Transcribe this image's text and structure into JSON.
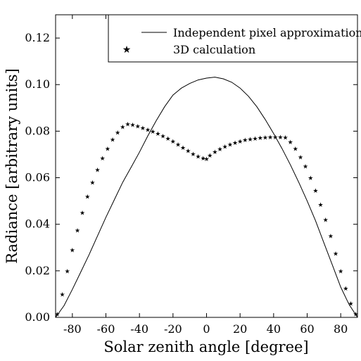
{
  "chart_data": {
    "type": "line",
    "title": "",
    "xlabel": "Solar zenith angle [degree]",
    "ylabel": "Radiance [arbitrary units]",
    "xlim": [
      -90,
      90
    ],
    "ylim": [
      0,
      0.13
    ],
    "grid": false,
    "legend_position": "top-right",
    "x_ticks": [
      {
        "value": -80,
        "label": "-80"
      },
      {
        "value": -60,
        "label": "-60"
      },
      {
        "value": -40,
        "label": "-40"
      },
      {
        "value": -20,
        "label": "-20"
      },
      {
        "value": 0,
        "label": "0"
      },
      {
        "value": 20,
        "label": "20"
      },
      {
        "value": 40,
        "label": "40"
      },
      {
        "value": 60,
        "label": "60"
      },
      {
        "value": 80,
        "label": "80"
      }
    ],
    "y_ticks": [
      {
        "value": 0.0,
        "label": "0.00"
      },
      {
        "value": 0.02,
        "label": "0.02"
      },
      {
        "value": 0.04,
        "label": "0.04"
      },
      {
        "value": 0.06,
        "label": "0.06"
      },
      {
        "value": 0.08,
        "label": "0.08"
      },
      {
        "value": 0.1,
        "label": "0.10"
      },
      {
        "value": 0.12,
        "label": "0.12"
      }
    ],
    "series": [
      {
        "name": "Independent pixel approximation",
        "style": "line",
        "color": "#000000",
        "points": [
          [
            -90,
            0.0
          ],
          [
            -85,
            0.005
          ],
          [
            -80,
            0.012
          ],
          [
            -75,
            0.0195
          ],
          [
            -70,
            0.027
          ],
          [
            -65,
            0.035
          ],
          [
            -60,
            0.043
          ],
          [
            -55,
            0.0505
          ],
          [
            -50,
            0.058
          ],
          [
            -45,
            0.0645
          ],
          [
            -40,
            0.071
          ],
          [
            -35,
            0.078
          ],
          [
            -30,
            0.0845
          ],
          [
            -25,
            0.0905
          ],
          [
            -20,
            0.0955
          ],
          [
            -15,
            0.0985
          ],
          [
            -10,
            0.1005
          ],
          [
            -5,
            0.102
          ],
          [
            0,
            0.1028
          ],
          [
            5,
            0.1032
          ],
          [
            10,
            0.1025
          ],
          [
            15,
            0.101
          ],
          [
            20,
            0.0985
          ],
          [
            25,
            0.095
          ],
          [
            30,
            0.0905
          ],
          [
            35,
            0.085
          ],
          [
            40,
            0.079
          ],
          [
            45,
            0.0725
          ],
          [
            50,
            0.0655
          ],
          [
            55,
            0.058
          ],
          [
            60,
            0.05
          ],
          [
            65,
            0.0415
          ],
          [
            70,
            0.032
          ],
          [
            75,
            0.0225
          ],
          [
            80,
            0.013
          ],
          [
            85,
            0.0055
          ],
          [
            90,
            0.0
          ]
        ]
      },
      {
        "name": "3D calculation",
        "style": "star",
        "color": "#000000",
        "points": [
          [
            -89,
            0.0015
          ],
          [
            -86,
            0.01
          ],
          [
            -83,
            0.02
          ],
          [
            -80,
            0.029
          ],
          [
            -77,
            0.0375
          ],
          [
            -74,
            0.045
          ],
          [
            -71,
            0.052
          ],
          [
            -68,
            0.058
          ],
          [
            -65,
            0.0635
          ],
          [
            -62,
            0.0685
          ],
          [
            -59,
            0.0725
          ],
          [
            -56,
            0.0765
          ],
          [
            -53,
            0.0795
          ],
          [
            -50,
            0.082
          ],
          [
            -47,
            0.0832
          ],
          [
            -44,
            0.0828
          ],
          [
            -41,
            0.0822
          ],
          [
            -38,
            0.0815
          ],
          [
            -35,
            0.0807
          ],
          [
            -32,
            0.0799
          ],
          [
            -29,
            0.079
          ],
          [
            -26,
            0.078
          ],
          [
            -23,
            0.077
          ],
          [
            -20,
            0.0758
          ],
          [
            -17,
            0.0744
          ],
          [
            -14,
            0.073
          ],
          [
            -11,
            0.0716
          ],
          [
            -8,
            0.0703
          ],
          [
            -5,
            0.0693
          ],
          [
            -2,
            0.0685
          ],
          [
            0,
            0.0682
          ],
          [
            2,
            0.0697
          ],
          [
            5,
            0.0712
          ],
          [
            8,
            0.0724
          ],
          [
            11,
            0.0734
          ],
          [
            14,
            0.0743
          ],
          [
            17,
            0.0751
          ],
          [
            20,
            0.0758
          ],
          [
            23,
            0.0763
          ],
          [
            26,
            0.0767
          ],
          [
            29,
            0.077
          ],
          [
            32,
            0.0772
          ],
          [
            35,
            0.0774
          ],
          [
            38,
            0.0775
          ],
          [
            41,
            0.0776
          ],
          [
            44,
            0.0776
          ],
          [
            47,
            0.0774
          ],
          [
            50,
            0.0755
          ],
          [
            53,
            0.0725
          ],
          [
            56,
            0.069
          ],
          [
            59,
            0.065
          ],
          [
            62,
            0.06
          ],
          [
            65,
            0.0545
          ],
          [
            68,
            0.0485
          ],
          [
            71,
            0.042
          ],
          [
            74,
            0.035
          ],
          [
            77,
            0.0275
          ],
          [
            80,
            0.02
          ],
          [
            83,
            0.0125
          ],
          [
            86,
            0.006
          ],
          [
            89,
            0.0015
          ]
        ]
      }
    ]
  },
  "legend": {
    "entries": [
      "Independent pixel approximation",
      "3D calculation"
    ]
  }
}
